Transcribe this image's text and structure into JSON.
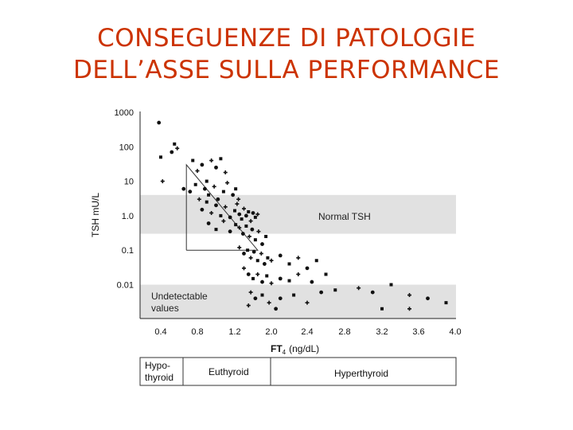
{
  "slide": {
    "title_line1": "CONSEGUENZE DI PATOLOGIE",
    "title_line2": "DELL’ASSE SULLA PERFORMANCE"
  },
  "chart_data": {
    "type": "scatter",
    "title": "",
    "xlabel": "FT",
    "xlabel_sub": "4",
    "xlabel_unit": "(ng/dL)",
    "ylabel": "TSH mU/L",
    "x_ticks": [
      "0.4",
      "0.8",
      "1.2",
      "2.0",
      "2.4",
      "2.8",
      "3.2",
      "3.6",
      "4.0"
    ],
    "y_ticks": [
      "1000",
      "100",
      "10",
      "1.0",
      "0.1",
      "0.01"
    ],
    "y_scale": "log",
    "ylim": [
      0.001,
      1000
    ],
    "grid": false,
    "bands": [
      {
        "label": "Normal TSH",
        "y_range": [
          0.3,
          4.0
        ],
        "color": "#e1e1e1"
      },
      {
        "label_line1": "Undetectable",
        "label_line2": "values",
        "y_range": [
          0.001,
          0.01
        ],
        "color": "#e1e1e1"
      }
    ],
    "reference_curve": [
      {
        "x": 0.68,
        "y": 0.1
      },
      {
        "x": 0.68,
        "y": 30
      },
      {
        "x": 1.7,
        "y": 0.1
      },
      {
        "x": 0.68,
        "y": 0.1
      }
    ],
    "points": [
      {
        "x": 0.38,
        "y": 500
      },
      {
        "x": 0.4,
        "y": 50
      },
      {
        "x": 0.42,
        "y": 10
      },
      {
        "x": 0.52,
        "y": 70
      },
      {
        "x": 0.55,
        "y": 120
      },
      {
        "x": 0.58,
        "y": 90
      },
      {
        "x": 0.65,
        "y": 6
      },
      {
        "x": 0.75,
        "y": 40
      },
      {
        "x": 0.8,
        "y": 20
      },
      {
        "x": 0.85,
        "y": 30
      },
      {
        "x": 0.9,
        "y": 10
      },
      {
        "x": 0.95,
        "y": 40
      },
      {
        "x": 1.0,
        "y": 25
      },
      {
        "x": 1.05,
        "y": 45
      },
      {
        "x": 1.1,
        "y": 18
      },
      {
        "x": 0.72,
        "y": 5
      },
      {
        "x": 0.78,
        "y": 8
      },
      {
        "x": 0.82,
        "y": 3
      },
      {
        "x": 0.88,
        "y": 6
      },
      {
        "x": 0.92,
        "y": 4
      },
      {
        "x": 0.98,
        "y": 7
      },
      {
        "x": 1.02,
        "y": 3
      },
      {
        "x": 1.08,
        "y": 5
      },
      {
        "x": 1.12,
        "y": 9
      },
      {
        "x": 1.18,
        "y": 4
      },
      {
        "x": 1.22,
        "y": 6
      },
      {
        "x": 1.28,
        "y": 3
      },
      {
        "x": 0.85,
        "y": 1.5
      },
      {
        "x": 0.9,
        "y": 2.5
      },
      {
        "x": 0.95,
        "y": 1.2
      },
      {
        "x": 1.0,
        "y": 2.0
      },
      {
        "x": 1.05,
        "y": 1.0
      },
      {
        "x": 1.1,
        "y": 1.8
      },
      {
        "x": 1.15,
        "y": 0.9
      },
      {
        "x": 1.2,
        "y": 1.4
      },
      {
        "x": 1.25,
        "y": 2.2
      },
      {
        "x": 1.3,
        "y": 1.1
      },
      {
        "x": 1.35,
        "y": 0.8
      },
      {
        "x": 1.4,
        "y": 1.6
      },
      {
        "x": 1.45,
        "y": 1.0
      },
      {
        "x": 1.5,
        "y": 1.3
      },
      {
        "x": 1.55,
        "y": 0.7
      },
      {
        "x": 1.6,
        "y": 1.2
      },
      {
        "x": 1.65,
        "y": 0.9
      },
      {
        "x": 1.7,
        "y": 1.1
      },
      {
        "x": 0.92,
        "y": 0.6
      },
      {
        "x": 1.0,
        "y": 0.4
      },
      {
        "x": 1.08,
        "y": 0.7
      },
      {
        "x": 1.15,
        "y": 0.35
      },
      {
        "x": 1.22,
        "y": 0.55
      },
      {
        "x": 1.3,
        "y": 0.45
      },
      {
        "x": 1.38,
        "y": 0.3
      },
      {
        "x": 1.45,
        "y": 0.5
      },
      {
        "x": 1.52,
        "y": 0.25
      },
      {
        "x": 1.58,
        "y": 0.4
      },
      {
        "x": 1.65,
        "y": 0.2
      },
      {
        "x": 1.72,
        "y": 0.35
      },
      {
        "x": 1.8,
        "y": 0.15
      },
      {
        "x": 1.88,
        "y": 0.25
      },
      {
        "x": 1.3,
        "y": 0.12
      },
      {
        "x": 1.4,
        "y": 0.08
      },
      {
        "x": 1.48,
        "y": 0.1
      },
      {
        "x": 1.55,
        "y": 0.06
      },
      {
        "x": 1.62,
        "y": 0.09
      },
      {
        "x": 1.7,
        "y": 0.05
      },
      {
        "x": 1.78,
        "y": 0.08
      },
      {
        "x": 1.85,
        "y": 0.04
      },
      {
        "x": 1.92,
        "y": 0.06
      },
      {
        "x": 2.0,
        "y": 0.05
      },
      {
        "x": 2.1,
        "y": 0.07
      },
      {
        "x": 2.2,
        "y": 0.04
      },
      {
        "x": 2.3,
        "y": 0.06
      },
      {
        "x": 2.4,
        "y": 0.03
      },
      {
        "x": 2.5,
        "y": 0.05
      },
      {
        "x": 1.4,
        "y": 0.03
      },
      {
        "x": 1.5,
        "y": 0.02
      },
      {
        "x": 1.6,
        "y": 0.015
      },
      {
        "x": 1.7,
        "y": 0.02
      },
      {
        "x": 1.8,
        "y": 0.012
      },
      {
        "x": 1.9,
        "y": 0.018
      },
      {
        "x": 2.0,
        "y": 0.011
      },
      {
        "x": 2.1,
        "y": 0.015
      },
      {
        "x": 2.2,
        "y": 0.013
      },
      {
        "x": 2.3,
        "y": 0.02
      },
      {
        "x": 2.45,
        "y": 0.012
      },
      {
        "x": 2.6,
        "y": 0.02
      },
      {
        "x": 1.55,
        "y": 0.006
      },
      {
        "x": 1.65,
        "y": 0.004
      },
      {
        "x": 1.8,
        "y": 0.005
      },
      {
        "x": 1.95,
        "y": 0.003
      },
      {
        "x": 2.1,
        "y": 0.004
      },
      {
        "x": 2.25,
        "y": 0.005
      },
      {
        "x": 2.4,
        "y": 0.003
      },
      {
        "x": 2.55,
        "y": 0.006
      },
      {
        "x": 2.7,
        "y": 0.007
      },
      {
        "x": 2.95,
        "y": 0.008
      },
      {
        "x": 3.1,
        "y": 0.006
      },
      {
        "x": 3.3,
        "y": 0.01
      },
      {
        "x": 3.5,
        "y": 0.005
      },
      {
        "x": 3.7,
        "y": 0.004
      },
      {
        "x": 3.9,
        "y": 0.003
      },
      {
        "x": 1.5,
        "y": 0.0025
      },
      {
        "x": 2.05,
        "y": 0.002
      },
      {
        "x": 3.2,
        "y": 0.002
      },
      {
        "x": 3.5,
        "y": 0.002
      }
    ]
  },
  "classification_table": {
    "cells": [
      {
        "line1": "Hypo-",
        "line2": "thyroid"
      },
      {
        "line1": "Euthyroid",
        "line2": ""
      },
      {
        "line1": "Hyperthyroid",
        "line2": ""
      }
    ]
  }
}
